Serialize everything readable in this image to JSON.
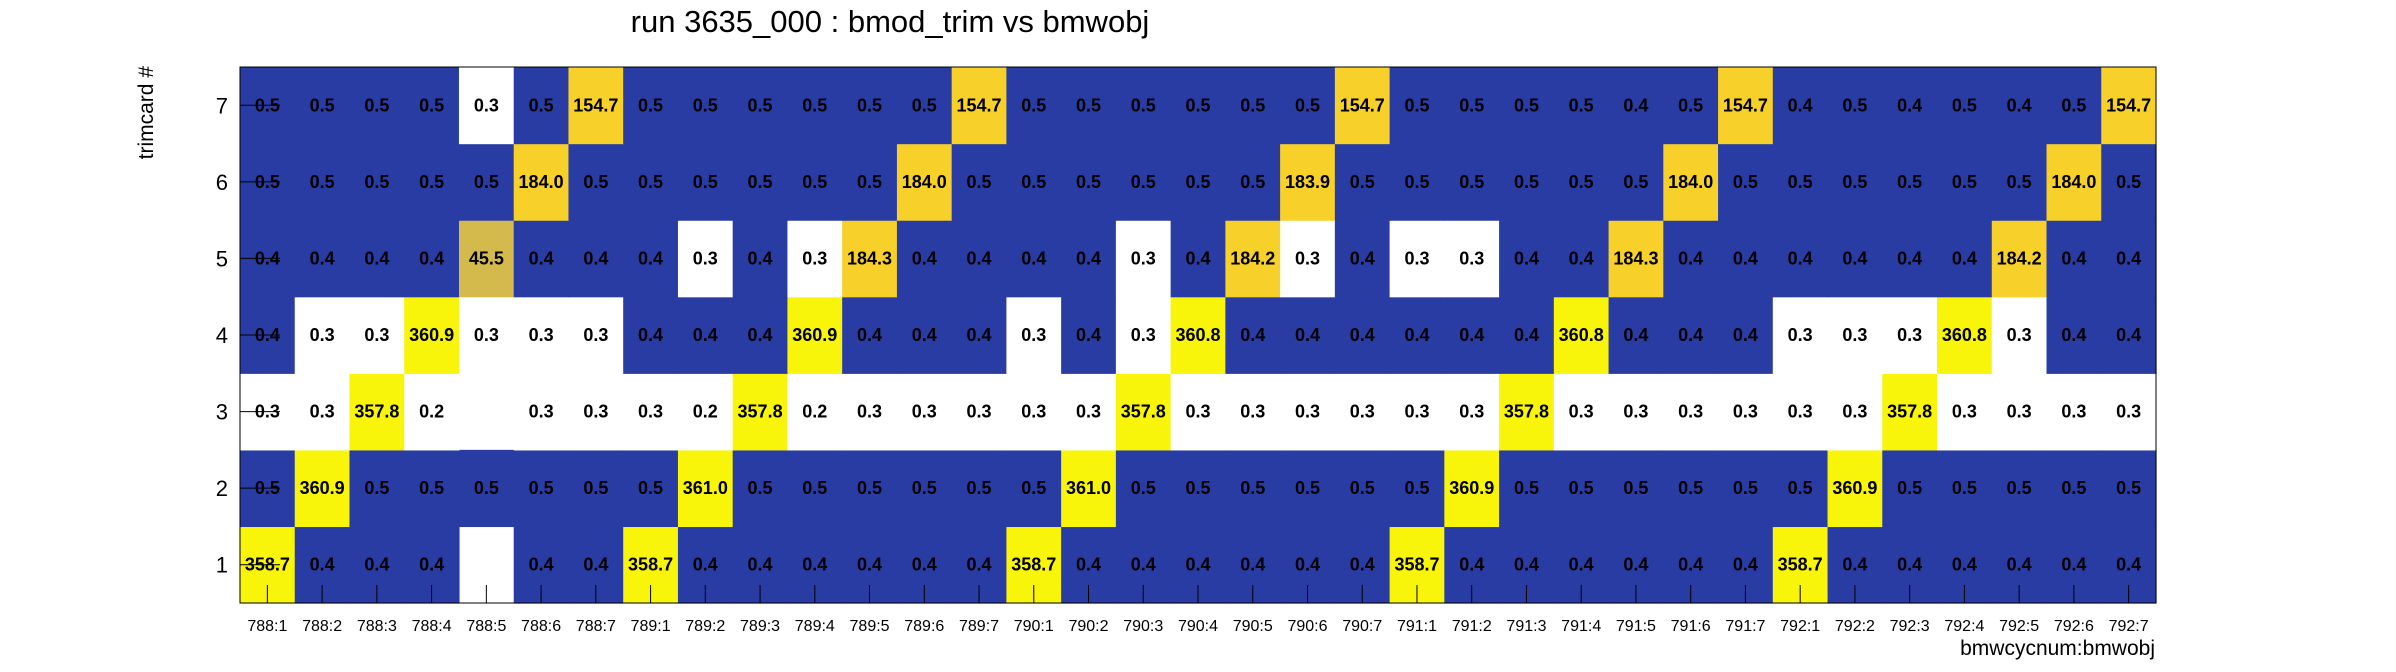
{
  "chart_data": {
    "type": "heatmap",
    "title": "run 3635_000 : bmod_trim vs bmwobj",
    "xlabel": "bmwcycnum:bmwobj",
    "ylabel": "trimcard #",
    "x_categories": [
      "788:1",
      "788:2",
      "788:3",
      "788:4",
      "788:5",
      "788:6",
      "788:7",
      "789:1",
      "789:2",
      "789:3",
      "789:4",
      "789:5",
      "789:6",
      "789:7",
      "790:1",
      "790:2",
      "790:3",
      "790:4",
      "790:5",
      "790:6",
      "790:7",
      "791:1",
      "791:2",
      "791:3",
      "791:4",
      "791:5",
      "791:6",
      "791:7",
      "792:1",
      "792:2",
      "792:3",
      "792:4",
      "792:5",
      "792:6",
      "792:7"
    ],
    "y_categories": [
      "1",
      "2",
      "3",
      "4",
      "5",
      "6",
      "7"
    ],
    "values": [
      [
        "358.7",
        "0.4",
        "0.4",
        "0.4",
        "",
        "0.4",
        "0.4",
        "358.7",
        "0.4",
        "0.4",
        "0.4",
        "0.4",
        "0.4",
        "0.4",
        "358.7",
        "0.4",
        "0.4",
        "0.4",
        "0.4",
        "0.4",
        "0.4",
        "358.7",
        "0.4",
        "0.4",
        "0.4",
        "0.4",
        "0.4",
        "0.4",
        "358.7",
        "0.4",
        "0.4",
        "0.4",
        "0.4",
        "0.4",
        "0.4"
      ],
      [
        "0.5",
        "360.9",
        "0.5",
        "0.5",
        "0.5",
        "0.5",
        "0.5",
        "0.5",
        "361.0",
        "0.5",
        "0.5",
        "0.5",
        "0.5",
        "0.5",
        "0.5",
        "361.0",
        "0.5",
        "0.5",
        "0.5",
        "0.5",
        "0.5",
        "0.5",
        "360.9",
        "0.5",
        "0.5",
        "0.5",
        "0.5",
        "0.5",
        "0.5",
        "360.9",
        "0.5",
        "0.5",
        "0.5",
        "0.5",
        "0.5"
      ],
      [
        "0.3",
        "0.3",
        "357.8",
        "0.2",
        "",
        "0.3",
        "0.3",
        "0.3",
        "0.2",
        "357.8",
        "0.2",
        "0.3",
        "0.3",
        "0.3",
        "0.3",
        "0.3",
        "357.8",
        "0.3",
        "0.3",
        "0.3",
        "0.3",
        "0.3",
        "0.3",
        "357.8",
        "0.3",
        "0.3",
        "0.3",
        "0.3",
        "0.3",
        "0.3",
        "357.8",
        "0.3",
        "0.3",
        "0.3",
        "0.3"
      ],
      [
        "0.4",
        "0.3",
        "0.3",
        "360.9",
        "0.3",
        "0.3",
        "0.3",
        "0.4",
        "0.4",
        "0.4",
        "360.9",
        "0.4",
        "0.4",
        "0.4",
        "0.3",
        "0.4",
        "0.3",
        "360.8",
        "0.4",
        "0.4",
        "0.4",
        "0.4",
        "0.4",
        "0.4",
        "360.8",
        "0.4",
        "0.4",
        "0.4",
        "0.3",
        "0.3",
        "0.3",
        "360.8",
        "0.3",
        "0.4",
        "0.4"
      ],
      [
        "0.4",
        "0.4",
        "0.4",
        "0.4",
        "45.5",
        "0.4",
        "0.4",
        "0.4",
        "0.3",
        "0.4",
        "0.3",
        "184.3",
        "0.4",
        "0.4",
        "0.4",
        "0.4",
        "0.3",
        "0.4",
        "184.2",
        "0.3",
        "0.4",
        "0.3",
        "0.3",
        "0.4",
        "0.4",
        "184.3",
        "0.4",
        "0.4",
        "0.4",
        "0.4",
        "0.4",
        "0.4",
        "184.2",
        "0.4",
        "0.4"
      ],
      [
        "0.5",
        "0.5",
        "0.5",
        "0.5",
        "0.5",
        "184.0",
        "0.5",
        "0.5",
        "0.5",
        "0.5",
        "0.5",
        "0.5",
        "184.0",
        "0.5",
        "0.5",
        "0.5",
        "0.5",
        "0.5",
        "0.5",
        "183.9",
        "0.5",
        "0.5",
        "0.5",
        "0.5",
        "0.5",
        "0.5",
        "184.0",
        "0.5",
        "0.5",
        "0.5",
        "0.5",
        "0.5",
        "0.5",
        "184.0",
        "0.5"
      ],
      [
        "0.5",
        "0.5",
        "0.5",
        "0.5",
        "0.3",
        "0.5",
        "154.7",
        "0.5",
        "0.5",
        "0.5",
        "0.5",
        "0.5",
        "0.5",
        "154.7",
        "0.5",
        "0.5",
        "0.5",
        "0.5",
        "0.5",
        "0.5",
        "154.7",
        "0.5",
        "0.5",
        "0.5",
        "0.5",
        "0.4",
        "0.5",
        "154.7",
        "0.4",
        "0.5",
        "0.4",
        "0.5",
        "0.4",
        "0.5",
        "154.7"
      ]
    ],
    "colors": {
      "below_range": "#ffffff",
      "low": "#283ca4",
      "mid": "#d4b94c",
      "high_mid": "#f7d02a",
      "high": "#f8f40a"
    },
    "grid": false,
    "legend": "none"
  }
}
